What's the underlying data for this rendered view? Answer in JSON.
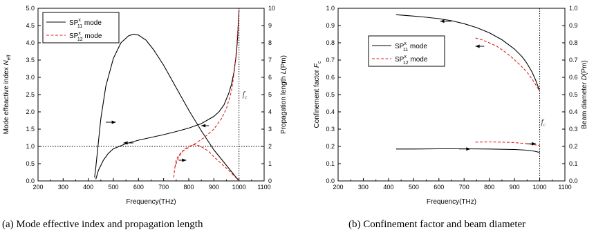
{
  "chart_data": [
    {
      "type": "line",
      "xlabel": "Frequency(THz)",
      "ylabel": "Mode effeactive index N_eff",
      "ylabel_parts": {
        "main": "Mode effeactive index ",
        "sym": "N",
        "sub": "eff"
      },
      "y2label_parts": {
        "main": "Propagation length ",
        "sym": "L",
        "unit": "(Pm)"
      },
      "xlim": [
        200,
        1100
      ],
      "ylim": [
        0,
        5
      ],
      "y2lim": [
        0,
        10
      ],
      "xticks": [
        "200",
        "300",
        "400",
        "500",
        "600",
        "700",
        "800",
        "900",
        "1000",
        "1100"
      ],
      "yticks": [
        "0.0",
        "0.5",
        "1.0",
        "1.5",
        "2.0",
        "2.5",
        "3.0",
        "3.5",
        "4.0",
        "4.5",
        "5.0"
      ],
      "y2ticks": [
        "0",
        "1",
        "2",
        "3",
        "4",
        "5",
        "6",
        "7",
        "8",
        "9",
        "10"
      ],
      "legend": [
        {
          "base": "SP",
          "sup": "x",
          "sub": "11",
          "rest": " mode",
          "style": "solid",
          "color": "#000000"
        },
        {
          "base": "SP",
          "sup": "x",
          "sub": "12",
          "rest": " mode",
          "style": "dashed",
          "color": "#e02020"
        }
      ],
      "legend_position": "top-left",
      "cutoff": {
        "x": 1000,
        "label": "f",
        "sub": "c"
      },
      "reference_line_y": 1.0,
      "series": [
        {
          "name": "SP11 index",
          "axis": "left",
          "color": "#000000",
          "dash": false,
          "x": [
            430,
            440,
            460,
            480,
            500,
            550,
            600,
            650,
            700,
            750,
            800,
            850,
            900,
            920,
            940,
            960,
            970,
            980,
            990,
            995,
            1000
          ],
          "y": [
            0.05,
            0.3,
            0.6,
            0.8,
            0.93,
            1.08,
            1.18,
            1.26,
            1.34,
            1.43,
            1.53,
            1.66,
            1.87,
            2.0,
            2.2,
            2.55,
            2.8,
            3.15,
            3.7,
            4.2,
            4.95
          ]
        },
        {
          "name": "SP11 propagation length",
          "axis": "right",
          "color": "#000000",
          "dash": false,
          "x": [
            425,
            430,
            440,
            450,
            470,
            500,
            530,
            560,
            580,
            600,
            630,
            660,
            700,
            750,
            800,
            850,
            900,
            950,
            1000
          ],
          "y": [
            0.2,
            0.8,
            2.2,
            3.6,
            5.5,
            7.1,
            8.0,
            8.4,
            8.5,
            8.45,
            8.15,
            7.6,
            6.7,
            5.4,
            4.1,
            2.9,
            1.8,
            0.9,
            0.0
          ]
        },
        {
          "name": "SP12 index",
          "axis": "left",
          "color": "#e02020",
          "dash": true,
          "x": [
            745,
            750,
            760,
            780,
            800,
            830,
            860,
            900,
            930,
            950,
            970,
            980,
            990,
            1000
          ],
          "y": [
            0.4,
            0.6,
            0.75,
            0.88,
            0.97,
            1.1,
            1.25,
            1.5,
            1.8,
            2.1,
            2.6,
            3.1,
            3.8,
            4.95
          ]
        },
        {
          "name": "SP12 propagation length",
          "axis": "right",
          "color": "#e02020",
          "dash": true,
          "x": [
            740,
            745,
            760,
            780,
            800,
            820,
            840,
            860,
            880,
            900,
            930,
            960,
            1000
          ],
          "y": [
            0.2,
            0.8,
            1.4,
            1.8,
            2.0,
            2.1,
            2.05,
            1.9,
            1.7,
            1.4,
            1.0,
            0.6,
            0.0
          ]
        }
      ],
      "arrows": [
        {
          "x1": 470,
          "x2": 510,
          "y": 3.4,
          "axis": "right",
          "dir": "right"
        },
        {
          "x1": 540,
          "x2": 580,
          "y": 1.1,
          "axis": "left",
          "dir": "left"
        },
        {
          "x1": 850,
          "x2": 880,
          "y": 1.6,
          "axis": "left",
          "dir": "left"
        },
        {
          "x1": 760,
          "x2": 790,
          "y": 0.6,
          "axis": "left",
          "dir": "right"
        }
      ]
    },
    {
      "type": "line",
      "xlabel": "Frequency(THz)",
      "ylabel_parts": {
        "main": "Confinement factor ",
        "sym": "F",
        "sub": "c"
      },
      "y2label_parts": {
        "main": "Beam diameter ",
        "sym": "D",
        "unit": "(Pm)"
      },
      "xlim": [
        200,
        1100
      ],
      "ylim": [
        0,
        1
      ],
      "y2lim": [
        0,
        1
      ],
      "xticks": [
        "200",
        "300",
        "400",
        "500",
        "600",
        "700",
        "800",
        "900",
        "1000",
        "1100"
      ],
      "yticks": [
        "0.0",
        "0.1",
        "0.2",
        "0.3",
        "0.4",
        "0.5",
        "0.6",
        "0.7",
        "0.8",
        "0.9",
        "1.0"
      ],
      "y2ticks": [
        "0.0",
        "0.1",
        "0.2",
        "0.3",
        "0.4",
        "0.5",
        "0.6",
        "0.7",
        "0.8",
        "0.9",
        "1.0"
      ],
      "legend": [
        {
          "base": "SP",
          "sup": "x",
          "sub": "11",
          "rest": " mode",
          "style": "solid",
          "color": "#000000"
        },
        {
          "base": "SP",
          "sup": "x",
          "sub": "12",
          "rest": " mode",
          "style": "dashed",
          "color": "#e02020"
        }
      ],
      "legend_position": "top-left",
      "cutoff": {
        "x": 1000,
        "label": "f",
        "sub": "c"
      },
      "series": [
        {
          "name": "SP11 confinement factor",
          "axis": "left",
          "color": "#000000",
          "dash": false,
          "x": [
            430,
            500,
            550,
            600,
            650,
            700,
            750,
            800,
            850,
            900,
            930,
            950,
            970,
            985,
            1000
          ],
          "y": [
            0.963,
            0.955,
            0.948,
            0.94,
            0.928,
            0.911,
            0.888,
            0.858,
            0.818,
            0.764,
            0.72,
            0.68,
            0.63,
            0.58,
            0.52
          ]
        },
        {
          "name": "SP11 beam diameter",
          "axis": "right",
          "color": "#000000",
          "dash": false,
          "x": [
            430,
            500,
            600,
            700,
            800,
            900,
            950,
            980,
            1000
          ],
          "y": [
            0.185,
            0.185,
            0.186,
            0.186,
            0.185,
            0.182,
            0.178,
            0.172,
            0.165
          ]
        },
        {
          "name": "SP12 confinement factor",
          "axis": "left",
          "color": "#e02020",
          "dash": true,
          "x": [
            745,
            770,
            800,
            830,
            860,
            890,
            920,
            950,
            970,
            985,
            1000
          ],
          "y": [
            0.828,
            0.818,
            0.8,
            0.78,
            0.75,
            0.715,
            0.675,
            0.63,
            0.59,
            0.555,
            0.52
          ]
        },
        {
          "name": "SP12 beam diameter",
          "axis": "right",
          "color": "#e02020",
          "dash": true,
          "x": [
            745,
            800,
            850,
            900,
            940,
            970,
            1000
          ],
          "y": [
            0.225,
            0.226,
            0.225,
            0.222,
            0.217,
            0.212,
            0.205
          ]
        }
      ],
      "arrows": [
        {
          "x1": 605,
          "x2": 650,
          "y": 0.925,
          "axis": "left",
          "dir": "left"
        },
        {
          "x1": 745,
          "x2": 780,
          "y": 0.78,
          "axis": "left",
          "dir": "left"
        },
        {
          "x1": 680,
          "x2": 725,
          "y": 0.185,
          "axis": "right",
          "dir": "right"
        },
        {
          "x1": 950,
          "x2": 985,
          "y": 0.215,
          "axis": "right",
          "dir": "right"
        }
      ]
    }
  ],
  "captions": {
    "a": "(a) Mode effective index and propagation length",
    "b": "(b) Confinement factor and beam diameter"
  }
}
